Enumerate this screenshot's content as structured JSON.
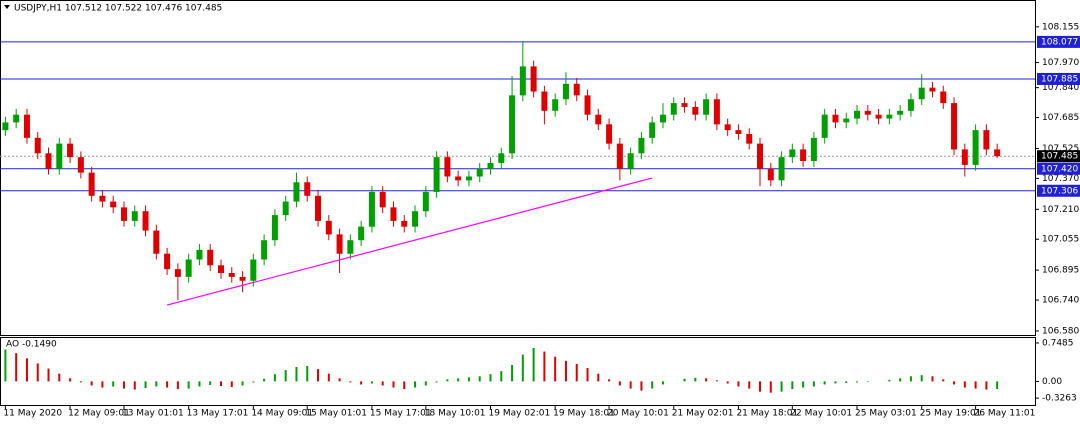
{
  "chart_data": [
    {
      "type": "candlestick",
      "title": "USDJPY,H1  107.512 107.522 107.476 107.485",
      "up_color": "#00a000",
      "down_color": "#e00000",
      "categories": [
        "11 May 2020",
        null,
        null,
        null,
        null,
        null,
        "12 May 09:01",
        null,
        null,
        null,
        null,
        "13 May 01:01",
        null,
        null,
        null,
        null,
        null,
        "13 May 17:01",
        null,
        null,
        null,
        null,
        null,
        "14 May 09:01",
        null,
        null,
        null,
        null,
        "15 May 01:01",
        null,
        null,
        null,
        null,
        null,
        "15 May 17:01",
        null,
        null,
        null,
        null,
        "18 May 10:01",
        null,
        null,
        null,
        null,
        null,
        "19 May 02:01",
        null,
        null,
        null,
        null,
        null,
        "19 May 18:01",
        null,
        null,
        null,
        null,
        "20 May 10:01",
        null,
        null,
        null,
        null,
        null,
        "21 May 02:01",
        null,
        null,
        null,
        null,
        null,
        "21 May 18:01",
        null,
        null,
        null,
        null,
        "22 May 10:01",
        null,
        null,
        null,
        null,
        null,
        "25 May 03:01",
        null,
        null,
        null,
        null,
        null,
        "25 May 19:01",
        null,
        null,
        null,
        null,
        "26 May 11:01",
        null,
        null
      ],
      "open": [
        107.62,
        107.66,
        107.7,
        107.58,
        107.5,
        107.42,
        107.55,
        107.48,
        107.4,
        107.28,
        107.25,
        107.22,
        107.15,
        107.2,
        107.1,
        106.98,
        106.9,
        106.86,
        106.95,
        107.0,
        106.92,
        106.88,
        106.86,
        106.84,
        106.95,
        107.05,
        107.18,
        107.25,
        107.35,
        107.28,
        107.15,
        107.08,
        106.98,
        107.05,
        107.12,
        107.3,
        107.22,
        107.15,
        107.12,
        107.2,
        107.3,
        107.48,
        107.38,
        107.36,
        107.38,
        107.42,
        107.45,
        107.5,
        107.8,
        107.95,
        107.82,
        107.72,
        107.78,
        107.86,
        107.8,
        107.7,
        107.65,
        107.55,
        107.42,
        107.5,
        107.58,
        107.66,
        107.7,
        107.76,
        107.74,
        107.7,
        107.78,
        107.65,
        107.62,
        107.6,
        107.55,
        107.42,
        107.36,
        107.48,
        107.52,
        107.46,
        107.58,
        107.7,
        107.66,
        107.68,
        107.72,
        107.7,
        107.68,
        107.7,
        107.72,
        107.78,
        107.84,
        107.82,
        107.76,
        107.52,
        107.44,
        107.62,
        107.52
      ],
      "high": [
        107.69,
        107.73,
        107.73,
        107.61,
        107.53,
        107.58,
        107.58,
        107.51,
        107.43,
        107.31,
        107.28,
        107.25,
        107.23,
        107.23,
        107.13,
        107.01,
        106.93,
        106.98,
        107.03,
        107.03,
        106.95,
        106.91,
        106.89,
        106.98,
        107.08,
        107.21,
        107.28,
        107.4,
        107.38,
        107.31,
        107.18,
        107.11,
        107.08,
        107.15,
        107.33,
        107.33,
        107.25,
        107.18,
        107.23,
        107.33,
        107.51,
        107.51,
        107.41,
        107.41,
        107.45,
        107.48,
        107.53,
        107.9,
        108.077,
        107.98,
        107.85,
        107.81,
        107.92,
        107.89,
        107.83,
        107.73,
        107.68,
        107.58,
        107.53,
        107.61,
        107.69,
        107.76,
        107.79,
        107.79,
        107.77,
        107.81,
        107.81,
        107.68,
        107.65,
        107.63,
        107.58,
        107.45,
        107.51,
        107.55,
        107.55,
        107.61,
        107.73,
        107.73,
        107.71,
        107.75,
        107.75,
        107.73,
        107.73,
        107.75,
        107.81,
        107.91,
        107.87,
        107.85,
        107.79,
        107.55,
        107.65,
        107.65,
        107.55
      ],
      "low": [
        107.59,
        107.63,
        107.55,
        107.47,
        107.39,
        107.39,
        107.45,
        107.37,
        107.25,
        107.22,
        107.19,
        107.12,
        107.12,
        107.07,
        106.95,
        106.87,
        106.74,
        106.83,
        106.92,
        106.89,
        106.85,
        106.83,
        106.78,
        106.81,
        106.92,
        107.02,
        107.15,
        107.22,
        107.25,
        107.12,
        107.05,
        106.88,
        106.95,
        107.02,
        107.09,
        107.19,
        107.12,
        107.09,
        107.09,
        107.17,
        107.27,
        107.35,
        107.33,
        107.33,
        107.35,
        107.39,
        107.42,
        107.47,
        107.77,
        107.79,
        107.65,
        107.69,
        107.75,
        107.77,
        107.67,
        107.62,
        107.52,
        107.36,
        107.39,
        107.47,
        107.55,
        107.63,
        107.67,
        107.71,
        107.67,
        107.67,
        107.62,
        107.59,
        107.57,
        107.52,
        107.33,
        107.33,
        107.33,
        107.45,
        107.43,
        107.43,
        107.55,
        107.63,
        107.63,
        107.65,
        107.67,
        107.65,
        107.65,
        107.67,
        107.69,
        107.75,
        107.79,
        107.73,
        107.49,
        107.38,
        107.41,
        107.49,
        107.476
      ],
      "close": [
        107.66,
        107.7,
        107.58,
        107.5,
        107.42,
        107.55,
        107.48,
        107.4,
        107.28,
        107.25,
        107.22,
        107.15,
        107.2,
        107.1,
        106.98,
        106.9,
        106.86,
        106.95,
        107.0,
        106.92,
        106.88,
        106.86,
        106.84,
        106.95,
        107.05,
        107.18,
        107.25,
        107.35,
        107.28,
        107.15,
        107.08,
        106.98,
        107.05,
        107.12,
        107.3,
        107.22,
        107.15,
        107.12,
        107.2,
        107.3,
        107.48,
        107.38,
        107.36,
        107.38,
        107.42,
        107.45,
        107.5,
        107.8,
        107.95,
        107.82,
        107.72,
        107.78,
        107.86,
        107.8,
        107.7,
        107.65,
        107.55,
        107.42,
        107.5,
        107.58,
        107.66,
        107.7,
        107.76,
        107.74,
        107.7,
        107.78,
        107.65,
        107.62,
        107.6,
        107.55,
        107.42,
        107.36,
        107.48,
        107.52,
        107.46,
        107.58,
        107.7,
        107.66,
        107.68,
        107.72,
        107.7,
        107.68,
        107.7,
        107.72,
        107.78,
        107.84,
        107.82,
        107.76,
        107.52,
        107.44,
        107.62,
        107.52,
        107.485
      ],
      "ylim": [
        106.559,
        108.294
      ],
      "yticks": [
        108.155,
        {
          "value": 107.97,
          "label": "107.970"
        },
        {
          "value": 107.84,
          "label": "107.840"
        },
        107.685,
        107.525,
        {
          "value": 107.37,
          "label": "107.370"
        },
        {
          "value": 107.21,
          "label": "107.210"
        },
        107.055,
        106.895,
        {
          "value": 106.74,
          "label": "106.740"
        },
        {
          "value": 106.58,
          "label": "106.580"
        }
      ],
      "levels": {
        "color": "#2020d8",
        "values": [
          108.077,
          107.885,
          {
            "value": 107.42,
            "label": "107.420"
          },
          107.306
        ]
      },
      "current_price": 107.485,
      "trendline": {
        "color": "#ff00ff",
        "x": [
          15,
          60
        ],
        "y": [
          106.714,
          107.372
        ]
      }
    },
    {
      "type": "histogram",
      "title": "AO -0.1490",
      "up_color": "#00a000",
      "down_color": "#e00000",
      "values": [
        0.62,
        0.55,
        0.45,
        0.35,
        0.25,
        0.15,
        0.06,
        -0.02,
        -0.08,
        -0.12,
        -0.1,
        -0.14,
        -0.16,
        -0.13,
        -0.1,
        -0.12,
        -0.15,
        -0.14,
        -0.1,
        -0.07,
        -0.09,
        -0.11,
        -0.08,
        -0.02,
        0.05,
        0.14,
        0.22,
        0.28,
        0.3,
        0.24,
        0.15,
        0.06,
        -0.02,
        -0.06,
        -0.04,
        -0.08,
        -0.12,
        -0.15,
        -0.12,
        -0.08,
        -0.02,
        0.04,
        0.06,
        0.08,
        0.1,
        0.14,
        0.2,
        0.32,
        0.52,
        0.65,
        0.58,
        0.48,
        0.4,
        0.34,
        0.26,
        0.15,
        0.04,
        -0.08,
        -0.14,
        -0.18,
        -0.14,
        -0.06,
        0.0,
        0.05,
        0.07,
        0.06,
        0.02,
        -0.04,
        -0.1,
        -0.14,
        -0.2,
        -0.22,
        -0.2,
        -0.15,
        -0.12,
        -0.1,
        -0.06,
        -0.04,
        -0.03,
        -0.02,
        -0.01,
        0.0,
        0.03,
        0.06,
        0.1,
        0.12,
        0.1,
        0.04,
        -0.06,
        -0.12,
        -0.14,
        -0.16,
        -0.149
      ],
      "ylim": [
        -0.46,
        0.845
      ],
      "yticks": [
        0.7485,
        {
          "value": 0,
          "label": "0.00"
        },
        -0.3263
      ]
    }
  ]
}
